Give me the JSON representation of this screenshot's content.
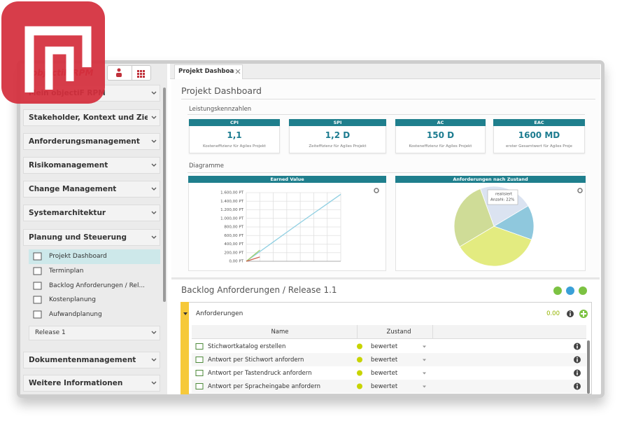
{
  "logo_text": "objectiF RPM",
  "sidebar": {
    "groups": [
      "Mein objectiF RPM",
      "Stakeholder, Kontext und Ziele",
      "Anforderungsmanagement",
      "Risikomanagement",
      "Change Management",
      "Systemarchitektur",
      "Planung und Steuerung",
      "Dokumentenmanagement",
      "Weitere Informationen"
    ],
    "items": [
      "Projekt Dashboard",
      "Terminplan",
      "Backlog Anforderungen / Rel...",
      "Kostenplanung",
      "Aufwandplanung"
    ],
    "release": "Release 1"
  },
  "tab": "Projekt Dashboard",
  "page_title": "Projekt Dashboard",
  "kpi_heading": "Leistungskennzahlen",
  "kpis": [
    {
      "label": "CPI",
      "value": "1,1",
      "caption": "Kosteneffizienz für Agiles Projekt"
    },
    {
      "label": "SPI",
      "value": "1,2 D",
      "caption": "Zeiteffizienz für Agiles Projekt"
    },
    {
      "label": "AC",
      "value": "150 D",
      "caption": "Kosteneffizienz für Agiles Projekt"
    },
    {
      "label": "EAC",
      "value": "1600 MD",
      "caption": "erster Gesamtwert für Agiles Proje"
    }
  ],
  "charts_heading": "Diagramme",
  "chart_data": [
    {
      "type": "line",
      "title": "Earned Value",
      "categories": [
        null,
        null,
        null,
        null,
        null,
        null,
        null,
        null
      ],
      "series": [
        {
          "color": "#8fcfe2",
          "values": [
            0,
            225,
            450,
            675,
            900,
            1120,
            1340,
            1560
          ]
        },
        {
          "color": "#9fd06a",
          "values": [
            0,
            260,
            null,
            null,
            null,
            null,
            null,
            null
          ]
        },
        {
          "color": "#cf6451",
          "values": [
            0,
            100,
            null,
            null,
            null,
            null,
            null,
            null
          ]
        }
      ],
      "ylim": [
        0,
        1600
      ],
      "yticks": [
        {
          "value": 0,
          "label": "0,00 PT"
        },
        {
          "value": 200,
          "label": "200,00 PT"
        },
        {
          "value": 400,
          "label": "400,00 PT"
        },
        {
          "value": 600,
          "label": "600,00 PT"
        },
        {
          "value": 800,
          "label": "800,00 PT"
        },
        {
          "value": 1000,
          "label": "1.000,00 PT"
        },
        {
          "value": 1200,
          "label": "1.200,00 PT"
        },
        {
          "value": 1400,
          "label": "1.400,00 PT"
        },
        {
          "value": 1600,
          "label": "1.600,00 PT"
        }
      ],
      "grid": true
    },
    {
      "type": "pie",
      "title": "Anforderungen nach Zustand",
      "values": [
        22,
        14,
        36,
        28
      ],
      "colors": [
        "#dbe3f1",
        "#8fc8dd",
        "#e3eb80",
        "#cfdc97"
      ],
      "tooltip": [
        "realisiert",
        "Anzahl: 22%"
      ]
    }
  ],
  "backlog": {
    "title": "Backlog Anforderungen / Release 1.1",
    "group": "Anforderungen",
    "total": "0.00",
    "columns": [
      "Name",
      "Zustand"
    ],
    "rows": [
      [
        "Stichwortkatalog erstellen",
        "bewertet"
      ],
      [
        "Antwort per Stichwort anfordern",
        "bewertet"
      ],
      [
        "Antwort per Tastendruck anfordern",
        "bewertet"
      ],
      [
        "Antwort per Spracheingabe anfordern",
        "bewertet"
      ]
    ]
  }
}
